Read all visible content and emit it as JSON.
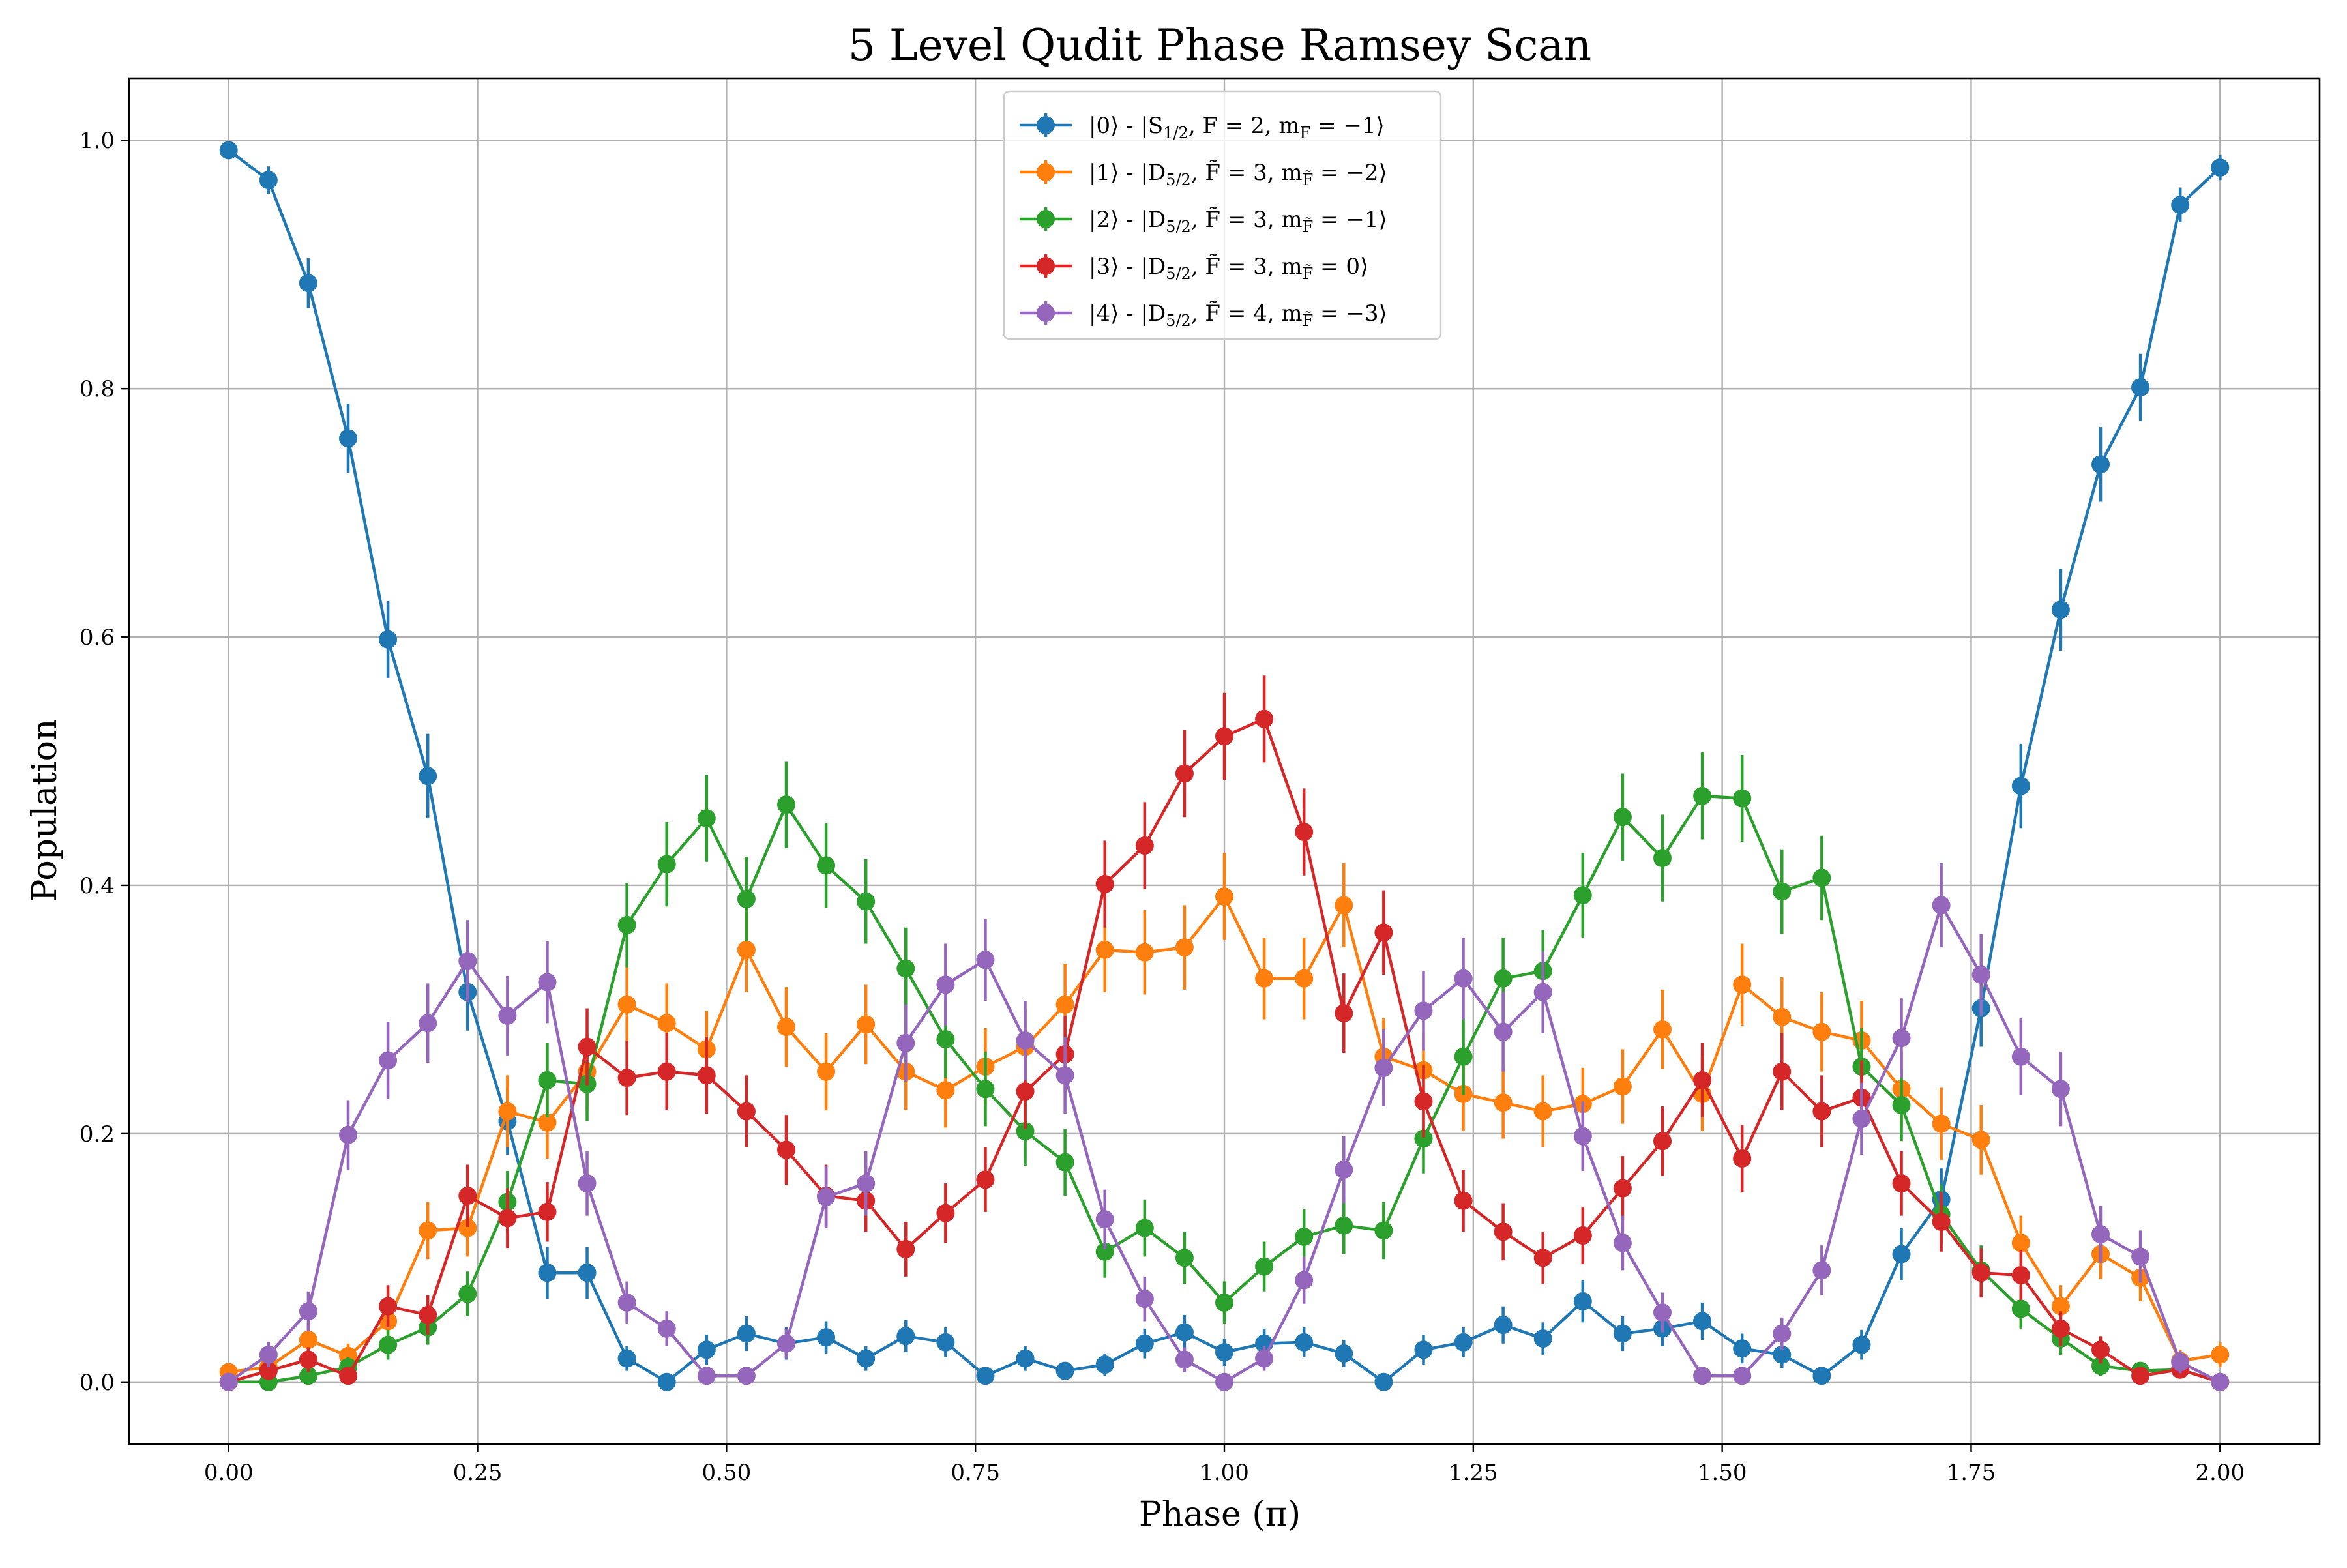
{
  "chart_data": {
    "type": "line",
    "title": "5 Level Qudit Phase Ramsey Scan",
    "xlabel": "Phase (π)",
    "ylabel": "Population",
    "xlim": [
      -0.1,
      2.1
    ],
    "ylim": [
      -0.05,
      1.05
    ],
    "grid": true,
    "legend_position": "top-center",
    "x_ticks": [
      0.0,
      0.25,
      0.5,
      0.75,
      1.0,
      1.25,
      1.5,
      1.75,
      2.0
    ],
    "x_tick_labels": [
      "0.00",
      "0.25",
      "0.50",
      "0.75",
      "1.00",
      "1.25",
      "1.50",
      "1.75",
      "2.00"
    ],
    "y_ticks": [
      0.0,
      0.2,
      0.4,
      0.6,
      0.8,
      1.0
    ],
    "y_tick_labels": [
      "0.0",
      "0.2",
      "0.4",
      "0.6",
      "0.8",
      "1.0"
    ],
    "x": [
      0.0,
      0.04,
      0.08,
      0.12,
      0.16,
      0.2,
      0.24,
      0.28,
      0.32,
      0.36,
      0.4,
      0.44,
      0.48,
      0.52,
      0.56,
      0.6,
      0.64,
      0.68,
      0.72,
      0.76,
      0.8,
      0.84,
      0.88,
      0.92,
      0.96,
      1.0,
      1.04,
      1.08,
      1.12,
      1.16,
      1.2,
      1.24,
      1.28,
      1.32,
      1.36,
      1.4,
      1.44,
      1.48,
      1.52,
      1.56,
      1.6,
      1.64,
      1.68,
      1.72,
      1.76,
      1.8,
      1.84,
      1.88,
      1.92,
      1.96,
      2.0
    ],
    "series": [
      {
        "name": "|0⟩ - |S1/2, F = 2, mF = −1⟩",
        "color": "#1f77b4",
        "values": [
          0.992,
          0.968,
          0.885,
          0.76,
          0.598,
          0.488,
          0.314,
          0.21,
          0.088,
          0.088,
          0.019,
          0.0,
          0.026,
          0.039,
          0.031,
          0.036,
          0.019,
          0.037,
          0.032,
          0.005,
          0.019,
          0.009,
          0.014,
          0.031,
          0.04,
          0.024,
          0.031,
          0.032,
          0.023,
          0.0,
          0.026,
          0.032,
          0.046,
          0.035,
          0.065,
          0.039,
          0.043,
          0.049,
          0.027,
          0.022,
          0.005,
          0.03,
          0.103,
          0.147,
          0.301,
          0.48,
          0.622,
          0.739,
          0.801,
          0.948,
          0.978
        ],
        "errors": [
          0.006,
          0.011,
          0.02,
          0.028,
          0.031,
          0.034,
          0.031,
          0.027,
          0.021,
          0.021,
          0.01,
          0.005,
          0.012,
          0.014,
          0.013,
          0.013,
          0.01,
          0.013,
          0.012,
          0.005,
          0.01,
          0.007,
          0.009,
          0.012,
          0.014,
          0.011,
          0.012,
          0.012,
          0.011,
          0.005,
          0.012,
          0.012,
          0.015,
          0.013,
          0.017,
          0.014,
          0.014,
          0.015,
          0.012,
          0.011,
          0.005,
          0.012,
          0.021,
          0.025,
          0.031,
          0.034,
          0.033,
          0.03,
          0.027,
          0.014,
          0.01
        ]
      },
      {
        "name": "|1⟩ - |D5/2, F̃ = 3, mF̃ = −2⟩",
        "color": "#ff7f0e",
        "values": [
          0.008,
          0.012,
          0.034,
          0.021,
          0.049,
          0.122,
          0.124,
          0.218,
          0.209,
          0.25,
          0.304,
          0.289,
          0.268,
          0.348,
          0.286,
          0.25,
          0.288,
          0.25,
          0.235,
          0.254,
          0.27,
          0.304,
          0.348,
          0.346,
          0.35,
          0.391,
          0.325,
          0.325,
          0.384,
          0.262,
          0.251,
          0.232,
          0.225,
          0.218,
          0.224,
          0.238,
          0.284,
          0.232,
          0.32,
          0.294,
          0.282,
          0.275,
          0.236,
          0.208,
          0.195,
          0.112,
          0.061,
          0.103,
          0.084,
          0.017,
          0.022
        ],
        "errors": [
          0.006,
          0.007,
          0.013,
          0.01,
          0.015,
          0.023,
          0.023,
          0.029,
          0.029,
          0.031,
          0.033,
          0.032,
          0.031,
          0.034,
          0.032,
          0.031,
          0.032,
          0.031,
          0.03,
          0.031,
          0.031,
          0.033,
          0.034,
          0.034,
          0.034,
          0.035,
          0.033,
          0.033,
          0.034,
          0.031,
          0.031,
          0.03,
          0.029,
          0.029,
          0.029,
          0.03,
          0.032,
          0.03,
          0.033,
          0.032,
          0.032,
          0.032,
          0.03,
          0.029,
          0.028,
          0.022,
          0.017,
          0.02,
          0.019,
          0.009,
          0.01
        ]
      },
      {
        "name": "|2⟩ - |D5/2, F̃ = 3, mF̃ = −1⟩",
        "color": "#2ca02c",
        "values": [
          0.0,
          0.0,
          0.005,
          0.012,
          0.03,
          0.044,
          0.071,
          0.145,
          0.243,
          0.24,
          0.368,
          0.417,
          0.454,
          0.389,
          0.465,
          0.416,
          0.387,
          0.333,
          0.276,
          0.236,
          0.202,
          0.177,
          0.105,
          0.124,
          0.1,
          0.064,
          0.093,
          0.117,
          0.126,
          0.122,
          0.196,
          0.262,
          0.325,
          0.331,
          0.392,
          0.455,
          0.422,
          0.472,
          0.47,
          0.395,
          0.406,
          0.254,
          0.223,
          0.135,
          0.09,
          0.059,
          0.035,
          0.013,
          0.009,
          0.01,
          0.0
        ],
        "errors": [
          0.004,
          0.004,
          0.006,
          0.008,
          0.012,
          0.014,
          0.018,
          0.025,
          0.03,
          0.03,
          0.034,
          0.034,
          0.035,
          0.034,
          0.035,
          0.034,
          0.034,
          0.033,
          0.031,
          0.03,
          0.028,
          0.027,
          0.021,
          0.023,
          0.021,
          0.017,
          0.02,
          0.022,
          0.023,
          0.023,
          0.028,
          0.031,
          0.033,
          0.033,
          0.034,
          0.035,
          0.035,
          0.035,
          0.035,
          0.034,
          0.034,
          0.031,
          0.029,
          0.024,
          0.02,
          0.016,
          0.013,
          0.008,
          0.007,
          0.007,
          0.004
        ]
      },
      {
        "name": "|3⟩ - |D5/2, F̃ = 3, mF̃ = 0⟩",
        "color": "#d62728",
        "values": [
          0.0,
          0.009,
          0.018,
          0.005,
          0.061,
          0.054,
          0.15,
          0.132,
          0.137,
          0.27,
          0.245,
          0.25,
          0.247,
          0.218,
          0.187,
          0.15,
          0.146,
          0.107,
          0.136,
          0.163,
          0.234,
          0.264,
          0.401,
          0.432,
          0.49,
          0.52,
          0.534,
          0.443,
          0.297,
          0.362,
          0.226,
          0.146,
          0.121,
          0.1,
          0.118,
          0.156,
          0.194,
          0.243,
          0.18,
          0.25,
          0.218,
          0.229,
          0.16,
          0.129,
          0.088,
          0.086,
          0.043,
          0.026,
          0.005,
          0.01,
          0.0
        ],
        "errors": [
          0.004,
          0.007,
          0.01,
          0.005,
          0.017,
          0.016,
          0.025,
          0.024,
          0.024,
          0.031,
          0.03,
          0.031,
          0.031,
          0.029,
          0.028,
          0.025,
          0.025,
          0.022,
          0.024,
          0.026,
          0.03,
          0.031,
          0.035,
          0.035,
          0.035,
          0.035,
          0.035,
          0.035,
          0.032,
          0.034,
          0.029,
          0.025,
          0.023,
          0.021,
          0.023,
          0.026,
          0.028,
          0.03,
          0.027,
          0.031,
          0.029,
          0.03,
          0.026,
          0.024,
          0.02,
          0.02,
          0.014,
          0.011,
          0.005,
          0.007,
          0.004
        ]
      },
      {
        "name": "|4⟩ - |D5/2, F̃ = 4, mF̃ = −3⟩",
        "color": "#9467bd",
        "values": [
          0.0,
          0.022,
          0.057,
          0.199,
          0.259,
          0.289,
          0.339,
          0.295,
          0.322,
          0.16,
          0.064,
          0.043,
          0.005,
          0.005,
          0.031,
          0.149,
          0.16,
          0.273,
          0.32,
          0.34,
          0.275,
          0.247,
          0.131,
          0.067,
          0.018,
          0.0,
          0.019,
          0.082,
          0.171,
          0.253,
          0.299,
          0.325,
          0.282,
          0.314,
          0.198,
          0.112,
          0.056,
          0.005,
          0.005,
          0.039,
          0.09,
          0.212,
          0.277,
          0.384,
          0.328,
          0.262,
          0.236,
          0.119,
          0.101,
          0.016,
          0.0
        ],
        "errors": [
          0.004,
          0.01,
          0.016,
          0.028,
          0.031,
          0.032,
          0.033,
          0.032,
          0.033,
          0.026,
          0.017,
          0.014,
          0.005,
          0.005,
          0.012,
          0.025,
          0.026,
          0.031,
          0.033,
          0.033,
          0.032,
          0.031,
          0.024,
          0.018,
          0.01,
          0.004,
          0.01,
          0.019,
          0.027,
          0.031,
          0.032,
          0.033,
          0.032,
          0.033,
          0.028,
          0.022,
          0.016,
          0.005,
          0.005,
          0.013,
          0.02,
          0.029,
          0.032,
          0.034,
          0.033,
          0.031,
          0.03,
          0.023,
          0.021,
          0.009,
          0.004
        ]
      }
    ]
  }
}
